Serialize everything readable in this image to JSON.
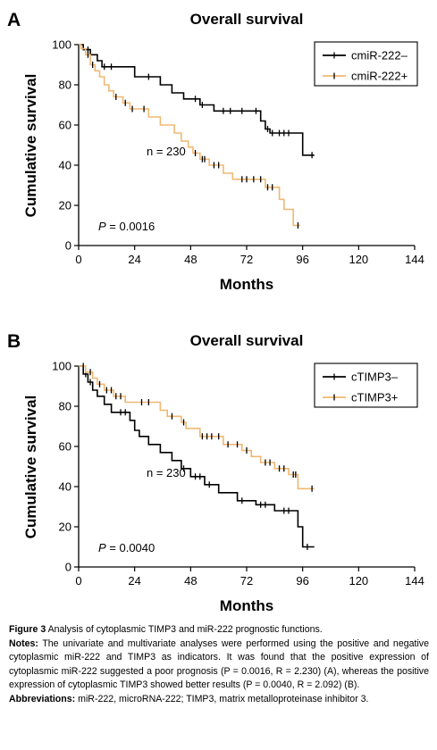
{
  "chart_data": [
    {
      "type": "line",
      "panel_letter": "A",
      "title": "Overall survival",
      "xlabel": "Months",
      "ylabel": "Cumulative survival",
      "xlim": [
        0,
        144
      ],
      "ylim": [
        0,
        100
      ],
      "xticks": [
        0,
        24,
        48,
        72,
        96,
        120,
        144
      ],
      "yticks": [
        0,
        20,
        40,
        60,
        80,
        100
      ],
      "legend_position": "top-right",
      "annotations": [
        "n = 230"
      ],
      "p_label": "P",
      "p_value": "= 0.0016",
      "series": [
        {
          "name": "cmiR-222–",
          "color": "#000000",
          "steps": [
            [
              0,
              100
            ],
            [
              2,
              97.5
            ],
            [
              5,
              95
            ],
            [
              8,
              92
            ],
            [
              10,
              89
            ],
            [
              24,
              84
            ],
            [
              35,
              80
            ],
            [
              40,
              76
            ],
            [
              45,
              73
            ],
            [
              52,
              70
            ],
            [
              58,
              67
            ],
            [
              78,
              62
            ],
            [
              80,
              58
            ],
            [
              82,
              56
            ],
            [
              96,
              45
            ],
            [
              101,
              45
            ]
          ],
          "censored": [
            [
              4,
              97.5
            ],
            [
              11,
              89
            ],
            [
              14,
              89
            ],
            [
              30,
              84
            ],
            [
              50,
              73
            ],
            [
              53,
              70
            ],
            [
              62,
              67
            ],
            [
              65,
              67
            ],
            [
              70,
              67
            ],
            [
              76,
              67
            ],
            [
              81,
              58
            ],
            [
              83,
              56
            ],
            [
              86,
              56
            ],
            [
              88,
              56
            ],
            [
              90,
              56
            ],
            [
              100,
              45
            ]
          ]
        },
        {
          "name": "cmiR-222+",
          "color": "#f0b872",
          "steps": [
            [
              0,
              100
            ],
            [
              1,
              98
            ],
            [
              3,
              95
            ],
            [
              5,
              90
            ],
            [
              7,
              87
            ],
            [
              9,
              84
            ],
            [
              11,
              80
            ],
            [
              13,
              77
            ],
            [
              15,
              74
            ],
            [
              19,
              71
            ],
            [
              22,
              68
            ],
            [
              30,
              64
            ],
            [
              35,
              60
            ],
            [
              41,
              56
            ],
            [
              44,
              52
            ],
            [
              47,
              49
            ],
            [
              49,
              46
            ],
            [
              52,
              43
            ],
            [
              56,
              40
            ],
            [
              62,
              36
            ],
            [
              66,
              33
            ],
            [
              80,
              29
            ],
            [
              86,
              23
            ],
            [
              88,
              18
            ],
            [
              92,
              10
            ],
            [
              95,
              10
            ]
          ],
          "censored": [
            [
              4,
              95
            ],
            [
              6,
              90
            ],
            [
              16,
              74
            ],
            [
              20,
              71
            ],
            [
              23,
              68
            ],
            [
              28,
              68
            ],
            [
              50,
              46
            ],
            [
              53,
              43
            ],
            [
              54,
              43
            ],
            [
              58,
              40
            ],
            [
              60,
              40
            ],
            [
              70,
              33
            ],
            [
              72,
              33
            ],
            [
              75,
              33
            ],
            [
              78,
              33
            ],
            [
              81,
              29
            ],
            [
              83,
              29
            ],
            [
              94,
              10
            ]
          ]
        }
      ]
    },
    {
      "type": "line",
      "panel_letter": "B",
      "title": "Overall survival",
      "xlabel": "Months",
      "ylabel": "Cumulative survival",
      "xlim": [
        0,
        144
      ],
      "ylim": [
        0,
        100
      ],
      "xticks": [
        0,
        24,
        48,
        72,
        96,
        120,
        144
      ],
      "yticks": [
        0,
        20,
        40,
        60,
        80,
        100
      ],
      "legend_position": "top-right",
      "annotations": [
        "n = 230"
      ],
      "p_label": "P",
      "p_value": "= 0.0040",
      "series": [
        {
          "name": "cTIMP3–",
          "color": "#000000",
          "steps": [
            [
              0,
              100
            ],
            [
              2,
              96
            ],
            [
              4,
              92
            ],
            [
              6,
              88
            ],
            [
              8,
              85
            ],
            [
              11,
              81
            ],
            [
              14,
              77
            ],
            [
              22,
              73
            ],
            [
              24,
              68
            ],
            [
              26,
              65
            ],
            [
              30,
              61
            ],
            [
              35,
              57
            ],
            [
              40,
              53
            ],
            [
              44,
              49
            ],
            [
              48,
              45
            ],
            [
              54,
              41
            ],
            [
              60,
              37
            ],
            [
              68,
              33
            ],
            [
              76,
              31
            ],
            [
              84,
              28
            ],
            [
              92,
              28
            ],
            [
              94,
              20
            ],
            [
              96,
              10
            ],
            [
              101,
              10
            ]
          ],
          "censored": [
            [
              3,
              96
            ],
            [
              5,
              92
            ],
            [
              18,
              77
            ],
            [
              20,
              77
            ],
            [
              45,
              49
            ],
            [
              50,
              45
            ],
            [
              52,
              45
            ],
            [
              56,
              41
            ],
            [
              70,
              33
            ],
            [
              78,
              31
            ],
            [
              80,
              31
            ],
            [
              88,
              28
            ],
            [
              90,
              28
            ],
            [
              98,
              10
            ]
          ]
        },
        {
          "name": "cTIMP3+",
          "color": "#f0b872",
          "steps": [
            [
              0,
              100
            ],
            [
              3,
              97
            ],
            [
              6,
              94
            ],
            [
              8,
              91
            ],
            [
              11,
              88
            ],
            [
              15,
              85
            ],
            [
              20,
              82
            ],
            [
              35,
              78
            ],
            [
              38,
              75
            ],
            [
              44,
              72
            ],
            [
              46,
              69
            ],
            [
              52,
              65
            ],
            [
              62,
              61
            ],
            [
              70,
              58
            ],
            [
              74,
              55
            ],
            [
              78,
              52
            ],
            [
              84,
              49
            ],
            [
              90,
              46
            ],
            [
              94,
              39
            ],
            [
              101,
              39
            ]
          ],
          "censored": [
            [
              2,
              100
            ],
            [
              5,
              97
            ],
            [
              9,
              91
            ],
            [
              12,
              88
            ],
            [
              14,
              88
            ],
            [
              16,
              85
            ],
            [
              18,
              85
            ],
            [
              27,
              82
            ],
            [
              30,
              82
            ],
            [
              40,
              75
            ],
            [
              45,
              72
            ],
            [
              53,
              65
            ],
            [
              55,
              65
            ],
            [
              57,
              65
            ],
            [
              60,
              65
            ],
            [
              64,
              61
            ],
            [
              68,
              61
            ],
            [
              72,
              58
            ],
            [
              80,
              52
            ],
            [
              82,
              52
            ],
            [
              86,
              49
            ],
            [
              88,
              49
            ],
            [
              92,
              46
            ],
            [
              93,
              46
            ],
            [
              100,
              39
            ]
          ]
        }
      ]
    }
  ],
  "caption": {
    "figure_label": "Figure 3",
    "figure_text": " Analysis of cytoplasmic TIMP3 and miR-222 prognostic functions.",
    "notes_label": "Notes:",
    "notes_text": " The univariate and multivariate analyses were performed using the positive and negative cytoplasmic miR-222 and TIMP3 as indicators. It was found that the positive expression of cytoplasmic miR-222 suggested a poor prognosis (P = 0.0016, R = 2.230) (A), whereas the positive expression of cytoplasmic TIMP3 showed better results (P = 0.0040, R = 2.092) (B).",
    "abbrev_label": "Abbreviations:",
    "abbrev_text": " miR-222, microRNA-222; TIMP3, matrix metalloproteinase inhibitor 3."
  }
}
